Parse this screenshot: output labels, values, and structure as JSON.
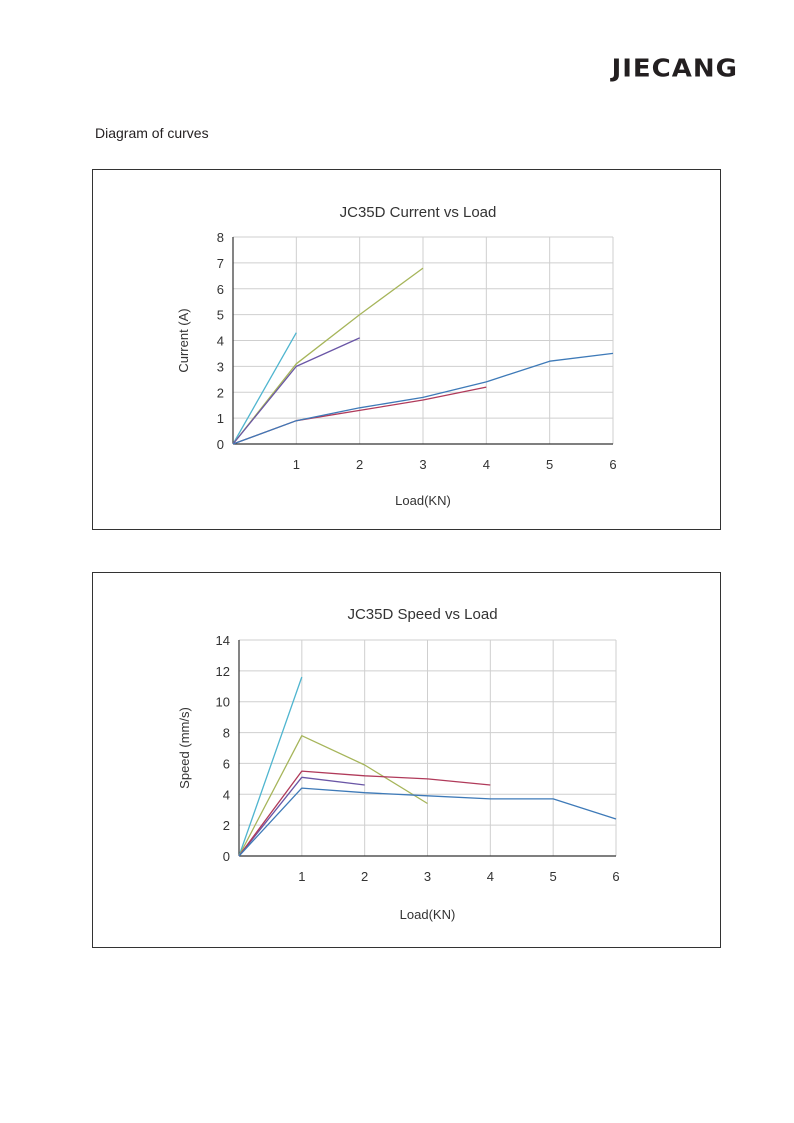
{
  "header": {
    "logo_text": "JIECANG",
    "section_title": "Diagram of curves"
  },
  "chart_data": [
    {
      "type": "line",
      "title": "JC35D Current vs Load",
      "xlabel": "Load(KN)",
      "ylabel": "Current (A)",
      "xlim": [
        0,
        6
      ],
      "ylim": [
        0,
        8
      ],
      "xticks": [
        1,
        2,
        3,
        4,
        5,
        6
      ],
      "yticks": [
        0,
        1,
        2,
        3,
        4,
        5,
        6,
        7,
        8
      ],
      "grid": true,
      "series": [
        {
          "color": "#4fb5cf",
          "x": [
            0,
            1
          ],
          "y": [
            0,
            4.3
          ]
        },
        {
          "color": "#a6b55a",
          "x": [
            0,
            1,
            2,
            3
          ],
          "y": [
            0,
            3.1,
            5.0,
            6.8
          ]
        },
        {
          "color": "#6a56a6",
          "x": [
            0,
            1,
            2
          ],
          "y": [
            0,
            3.0,
            4.1
          ]
        },
        {
          "color": "#b03a5a",
          "x": [
            0,
            1,
            2,
            3,
            4
          ],
          "y": [
            0,
            0.9,
            1.3,
            1.7,
            2.2
          ]
        },
        {
          "color": "#3e7ab8",
          "x": [
            0,
            1,
            2,
            3,
            4,
            5,
            6
          ],
          "y": [
            0,
            0.9,
            1.4,
            1.8,
            2.4,
            3.2,
            3.5
          ]
        }
      ]
    },
    {
      "type": "line",
      "title": "JC35D Speed vs Load",
      "xlabel": "Load(KN)",
      "ylabel": "Speed (mm/s)",
      "xlim": [
        0,
        6
      ],
      "ylim": [
        0,
        14
      ],
      "xticks": [
        1,
        2,
        3,
        4,
        5,
        6
      ],
      "yticks": [
        0,
        2,
        4,
        6,
        8,
        10,
        12,
        14
      ],
      "grid": true,
      "series": [
        {
          "color": "#4fb5cf",
          "x": [
            0,
            1
          ],
          "y": [
            0,
            11.6
          ]
        },
        {
          "color": "#a6b55a",
          "x": [
            0,
            1,
            2,
            3
          ],
          "y": [
            0,
            7.8,
            5.9,
            3.4
          ]
        },
        {
          "color": "#6a56a6",
          "x": [
            0,
            1,
            2
          ],
          "y": [
            0,
            5.1,
            4.6
          ]
        },
        {
          "color": "#b03a5a",
          "x": [
            0,
            1,
            2,
            3,
            4
          ],
          "y": [
            0,
            5.5,
            5.2,
            5.0,
            4.6
          ]
        },
        {
          "color": "#3e7ab8",
          "x": [
            0,
            1,
            2,
            3,
            4,
            5,
            6
          ],
          "y": [
            0,
            4.4,
            4.1,
            3.9,
            3.7,
            3.7,
            2.4
          ]
        }
      ]
    }
  ]
}
